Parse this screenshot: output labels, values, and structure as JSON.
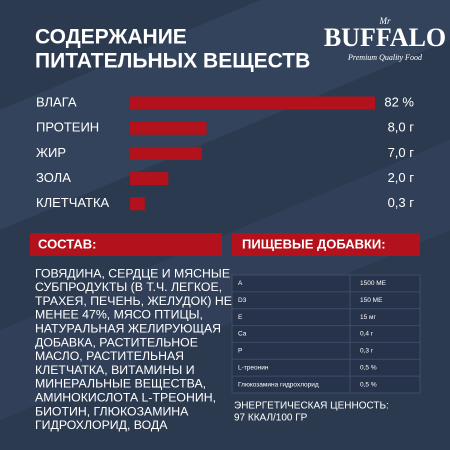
{
  "header": {
    "title": [
      "СОДЕРЖАНИЕ",
      "ПИТАТЕЛЬНЫХ ВЕЩЕСТВ"
    ],
    "logo": {
      "prefix": "Mr",
      "name": "BUFFALO",
      "tagline": "Premium Quality Food"
    }
  },
  "chart_data": {
    "type": "bar",
    "orientation": "horizontal",
    "xscale": "sqrt",
    "xlim": [
      0,
      82
    ],
    "color": "#b3121c",
    "categories": [
      "ВЛАГА",
      "ПРОТЕИН",
      "ЖИР",
      "ЗОЛА",
      "КЛЕТЧАТКА"
    ],
    "values": [
      82,
      8.0,
      7.0,
      2.0,
      0.3
    ],
    "value_labels": [
      "82 %",
      "8,0 г",
      "7,0 г",
      "2,0 г",
      "0,3 г"
    ]
  },
  "composition": {
    "heading": "СОСТАВ:",
    "lines": [
      "ГОВЯДИНА, СЕРДЦЕ И МЯСНЫЕ",
      "СУБПРОДУКТЫ (В Т.Ч. ЛЕГКОЕ,",
      "ТРАХЕЯ, ПЕЧЕНЬ, ЖЕЛУДОК) НЕ",
      "МЕНЕЕ 47%, МЯСО ПТИЦЫ,",
      "НАТУРАЛЬНАЯ ЖЕЛИРУЮЩАЯ",
      "ДОБАВКА, РАСТИТЕЛЬНОЕ",
      "МАСЛО, РАСТИТЕЛЬНАЯ",
      "КЛЕТЧАТКА, ВИТАМИНЫ И",
      "МИНЕРАЛЬНЫЕ ВЕЩЕСТВА,",
      "АМИНОКИСЛОТА L-ТРЕОНИН,",
      "БИОТИН, ГЛЮКОЗАМИНА",
      "ГИДРОХЛОРИД, ВОДА"
    ]
  },
  "additives": {
    "heading": "ПИЩЕВЫЕ ДОБАВКИ:",
    "rows": [
      [
        "A",
        "1500 МЕ"
      ],
      [
        "D3",
        "150 МЕ"
      ],
      [
        "E",
        "15 мг"
      ],
      [
        "Ca",
        "0,4 г"
      ],
      [
        "P",
        "0,3 г"
      ],
      [
        "L-треонин",
        "0,5 %"
      ],
      [
        "Глюкозамина гидрохлорид",
        "0,5 %"
      ]
    ],
    "energy": [
      "ЭНЕРГЕТИЧЕСКАЯ ЦЕННОСТЬ:",
      "97 ККАЛ/100 ГР"
    ]
  }
}
